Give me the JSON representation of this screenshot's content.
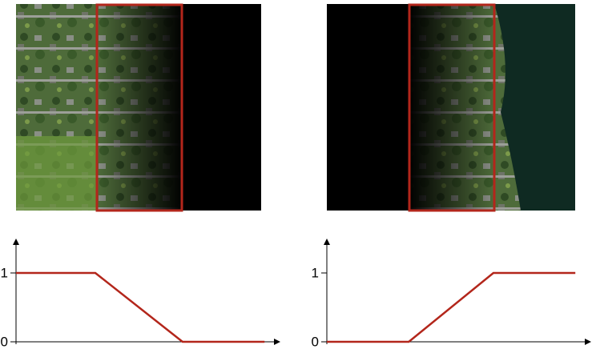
{
  "chart_data": [
    {
      "type": "line",
      "x": [
        0,
        0.3,
        0.63,
        0.94
      ],
      "series": [
        {
          "color": "#b3261b",
          "values": [
            1,
            1,
            0,
            0
          ]
        }
      ],
      "xlim": [
        0,
        1
      ],
      "ylim": [
        0,
        1.5
      ],
      "yticks": [
        0,
        1
      ]
    },
    {
      "type": "line",
      "x": [
        0,
        0.31,
        0.63,
        0.94
      ],
      "series": [
        {
          "color": "#b3261b",
          "values": [
            0,
            0,
            1,
            1
          ]
        }
      ],
      "xlim": [
        0,
        1
      ],
      "ylim": [
        0,
        1.5
      ],
      "yticks": [
        0,
        1
      ]
    }
  ]
}
